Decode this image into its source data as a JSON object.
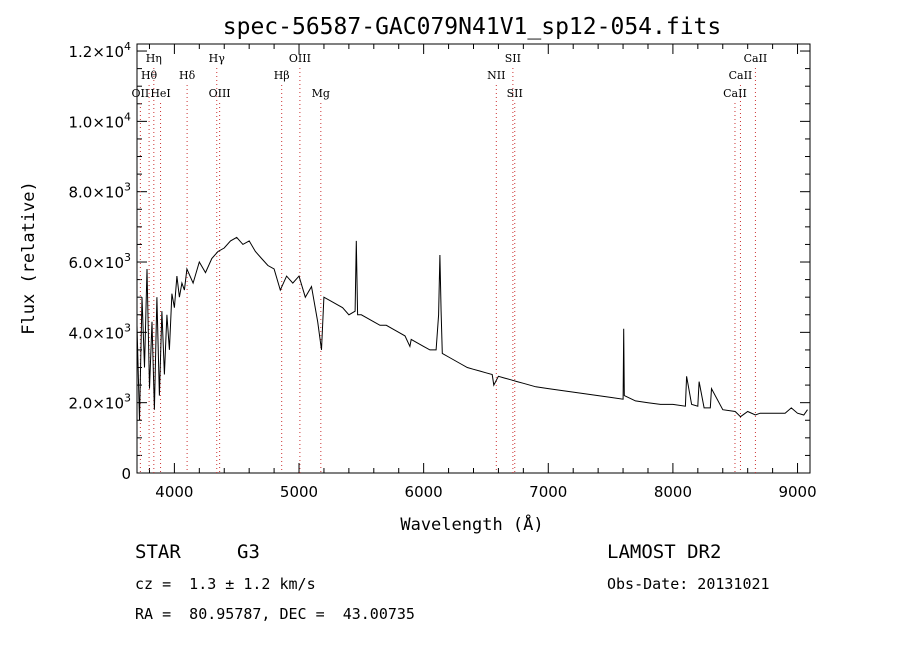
{
  "chart_data": {
    "type": "line",
    "title": "spec-56587-GAC079N41V1_sp12-054.fits",
    "xlabel": "Wavelength (Å)",
    "ylabel": "Flux (relative)",
    "xlim": [
      3700,
      9100
    ],
    "ylim": [
      0,
      12200
    ],
    "x_ticks": [
      4000,
      5000,
      6000,
      7000,
      8000,
      9000
    ],
    "x_tick_labels": [
      "4000",
      "5000",
      "6000",
      "7000",
      "8000",
      "9000"
    ],
    "y_ticks": [
      0,
      2000,
      4000,
      6000,
      8000,
      10000,
      12000
    ],
    "y_tick_labels": [
      {
        "mant": "0",
        "exp": ""
      },
      {
        "mant": "2.0×10",
        "exp": "3"
      },
      {
        "mant": "4.0×10",
        "exp": "3"
      },
      {
        "mant": "6.0×10",
        "exp": "3"
      },
      {
        "mant": "8.0×10",
        "exp": "3"
      },
      {
        "mant": "1.0×10",
        "exp": "4"
      },
      {
        "mant": "1.2×10",
        "exp": "4"
      }
    ],
    "grid": false,
    "line_color": "#000000",
    "marker_color": "#cc3333",
    "series": [
      {
        "x": [
          3700,
          3720,
          3740,
          3760,
          3780,
          3800,
          3820,
          3840,
          3860,
          3880,
          3900,
          3920,
          3940,
          3960,
          3980,
          4000,
          4020,
          4040,
          4060,
          4080,
          4100,
          4150,
          4200,
          4250,
          4300,
          4350,
          4400,
          4450,
          4500,
          4550,
          4600,
          4650,
          4700,
          4750,
          4800,
          4850,
          4900,
          4950,
          5000,
          5050,
          5100,
          5150,
          5180,
          5200,
          5250,
          5300,
          5350,
          5400,
          5450,
          5460,
          5470,
          5500,
          5550,
          5600,
          5650,
          5700,
          5750,
          5800,
          5850,
          5890,
          5900,
          5950,
          6000,
          6050,
          6100,
          6120,
          6130,
          6140,
          6150,
          6200,
          6250,
          6300,
          6350,
          6400,
          6450,
          6500,
          6550,
          6563,
          6600,
          6650,
          6700,
          6750,
          6800,
          6900,
          7000,
          7100,
          7200,
          7300,
          7400,
          7500,
          7600,
          7605,
          7610,
          7700,
          7800,
          7900,
          8000,
          8100,
          8110,
          8150,
          8200,
          8210,
          8250,
          8300,
          8310,
          8400,
          8500,
          8542,
          8600,
          8662,
          8700,
          8800,
          8900,
          8950,
          9000,
          9050,
          9080
        ],
        "y": [
          4200,
          1500,
          5000,
          3000,
          5800,
          2400,
          4300,
          1800,
          5000,
          2200,
          4600,
          2800,
          4500,
          3500,
          5100,
          4700,
          5600,
          5000,
          5400,
          5200,
          5800,
          5400,
          6000,
          5700,
          6100,
          6300,
          6400,
          6600,
          6700,
          6500,
          6600,
          6300,
          6100,
          5900,
          5800,
          5200,
          5600,
          5400,
          5600,
          5000,
          5300,
          4300,
          3500,
          5000,
          4900,
          4800,
          4700,
          4500,
          4600,
          6600,
          4500,
          4500,
          4400,
          4300,
          4200,
          4200,
          4100,
          4000,
          3900,
          3600,
          3800,
          3700,
          3600,
          3500,
          3500,
          4500,
          6200,
          4600,
          3400,
          3300,
          3200,
          3100,
          3000,
          2950,
          2900,
          2850,
          2800,
          2500,
          2750,
          2700,
          2650,
          2600,
          2550,
          2450,
          2400,
          2350,
          2300,
          2250,
          2200,
          2150,
          2100,
          4100,
          2200,
          2050,
          2000,
          1950,
          1950,
          1900,
          2750,
          1950,
          1900,
          2600,
          1850,
          1850,
          2400,
          1800,
          1750,
          1600,
          1750,
          1650,
          1700,
          1700,
          1700,
          1850,
          1700,
          1650,
          1800
        ]
      }
    ],
    "spectral_lines": [
      {
        "label": "Hη",
        "wavelength": 3835,
        "row": 0
      },
      {
        "label": "Hθ",
        "wavelength": 3797,
        "row": 1
      },
      {
        "label": "OII",
        "wavelength": 3727,
        "row": 2
      },
      {
        "label": "HeI",
        "wavelength": 3889,
        "row": 2
      },
      {
        "label": "Hδ",
        "wavelength": 4102,
        "row": 1
      },
      {
        "label": "Hγ",
        "wavelength": 4340,
        "row": 0
      },
      {
        "label": "OIII",
        "wavelength": 4363,
        "row": 2
      },
      {
        "label": "OIII",
        "wavelength": 5007,
        "row": 0
      },
      {
        "label": "Hβ",
        "wavelength": 4861,
        "row": 1
      },
      {
        "label": "Mg",
        "wavelength": 5175,
        "row": 2
      },
      {
        "label": "SII",
        "wavelength": 6716,
        "row": 0
      },
      {
        "label": "NII",
        "wavelength": 6583,
        "row": 1
      },
      {
        "label": "SII",
        "wavelength": 6731,
        "row": 2
      },
      {
        "label": "CaII",
        "wavelength": 8662,
        "row": 0
      },
      {
        "label": "CaII",
        "wavelength": 8542,
        "row": 1
      },
      {
        "label": "CaII",
        "wavelength": 8498,
        "row": 2
      }
    ]
  },
  "info": {
    "object_class": "STAR",
    "subclass": "G3",
    "survey": "LAMOST DR2",
    "redshift": "cz =  1.3 ± 1.2 km/s",
    "obs_date": "Obs-Date: 20131021",
    "coords": "RA =  80.95787, DEC =  43.00735"
  }
}
